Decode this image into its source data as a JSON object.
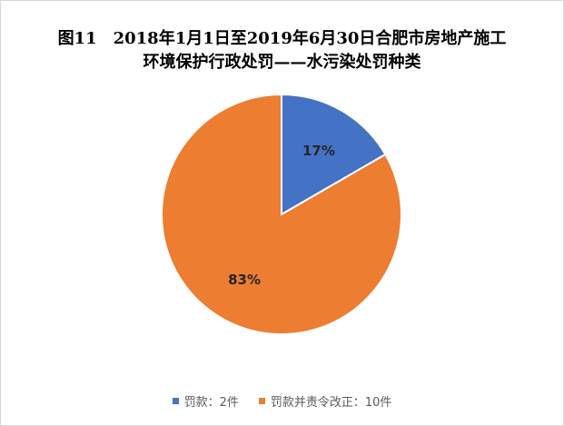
{
  "chart_data": {
    "type": "pie",
    "title_line1": "图11　2018年1月1日至2019年6月30日合肥市房地产施工",
    "title_line2": "环境保护行政处罚——水污染处罚种类",
    "slices": [
      {
        "label": "罚款：2件",
        "value": 2,
        "percent_label": "17%",
        "color": "#4472c4"
      },
      {
        "label": "罚款并责令改正：10件",
        "value": 10,
        "percent_label": "83%",
        "color": "#ed7d31"
      }
    ],
    "legend_position": "bottom"
  }
}
